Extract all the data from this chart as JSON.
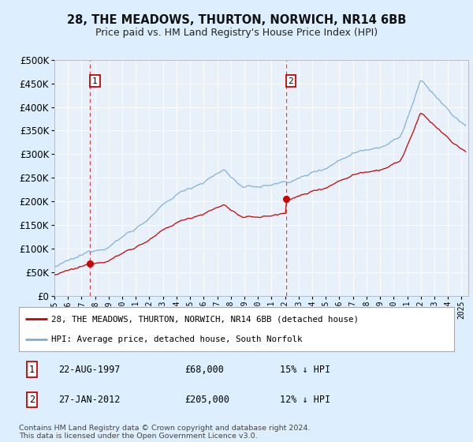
{
  "title": "28, THE MEADOWS, THURTON, NORWICH, NR14 6BB",
  "subtitle": "Price paid vs. HM Land Registry's House Price Index (HPI)",
  "legend_property": "28, THE MEADOWS, THURTON, NORWICH, NR14 6BB (detached house)",
  "legend_hpi": "HPI: Average price, detached house, South Norfolk",
  "sale1_date": 1997.64,
  "sale1_price": 68000,
  "sale1_label": "1",
  "sale1_display": "22-AUG-1997",
  "sale1_amount": "£68,000",
  "sale1_hpi": "15% ↓ HPI",
  "sale2_date": 2012.08,
  "sale2_price": 205000,
  "sale2_label": "2",
  "sale2_display": "27-JAN-2012",
  "sale2_amount": "£205,000",
  "sale2_hpi": "12% ↓ HPI",
  "property_color": "#cc0000",
  "hpi_color": "#7aafd4",
  "background_color": "#ddeeff",
  "plot_bg": "#e8f0fa",
  "ylim": [
    0,
    500000
  ],
  "xlim": [
    1995.0,
    2025.5
  ],
  "footnote": "Contains HM Land Registry data © Crown copyright and database right 2024.\nThis data is licensed under the Open Government Licence v3.0."
}
